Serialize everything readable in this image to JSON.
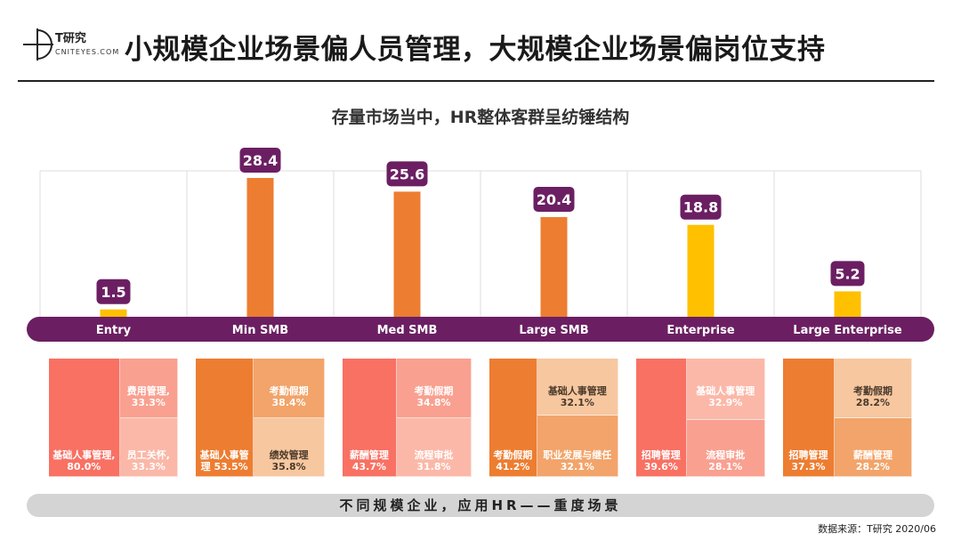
{
  "logo": {
    "name": "T研究",
    "sub": "CNITEYES.COM"
  },
  "page_title": "小规模企业场景偏人员管理，大规模企业场景偏岗位支持",
  "chart_data": {
    "type": "bar",
    "title": "存量市场当中，HR整体客群呈纺锤结构",
    "categories": [
      "Entry",
      "Min SMB",
      "Med SMB",
      "Large SMB",
      "Enterprise",
      "Large Enterprise"
    ],
    "values": [
      1.5,
      28.4,
      25.6,
      20.4,
      18.8,
      5.2
    ],
    "value_labels": [
      "1.5",
      "28.4",
      "25.6",
      "20.4",
      "18.8",
      "5.2"
    ],
    "ylim": [
      0,
      30
    ],
    "grid": "vertical",
    "colors": {
      "bar_orange": "#ED7D31",
      "bar_yellow": "#FFC000",
      "label_bg": "#6B1F62",
      "band": "#6B1F62"
    },
    "bar_colors": [
      "#FFC000",
      "#ED7D31",
      "#ED7D31",
      "#ED7D31",
      "#FFC000",
      "#FFC000"
    ]
  },
  "treemaps": [
    {
      "segment": "Entry",
      "blocks": [
        {
          "label": "基础人事管理, 80.0%",
          "color": "#F87163"
        },
        {
          "label": "费用管理, 33.3%",
          "color": "#F9A090"
        },
        {
          "label": "员工关怀, 33.3%",
          "color": "#FBB8A8"
        }
      ]
    },
    {
      "segment": "Min SMB",
      "blocks": [
        {
          "label": "基础人事管理 53.5%",
          "color": "#ED7D31"
        },
        {
          "label": "考勤假期 38.4%",
          "color": "#F2A46A"
        },
        {
          "label": "绩效管理 35.8%",
          "color": "#F7C7A0"
        }
      ]
    },
    {
      "segment": "Med SMB",
      "blocks": [
        {
          "label": "薪酬管理 43.7%",
          "color": "#F87163"
        },
        {
          "label": "考勤假期 34.8%",
          "color": "#F9A090"
        },
        {
          "label": "流程审批 31.8%",
          "color": "#FBB8A8"
        }
      ]
    },
    {
      "segment": "Large SMB",
      "blocks": [
        {
          "label": "考勤假期 41.2%",
          "color": "#ED7D31"
        },
        {
          "label": "基础人事管理 32.1%",
          "color": "#F7C7A0"
        },
        {
          "label": "职业发展与继任 32.1%",
          "color": "#F2A46A"
        }
      ]
    },
    {
      "segment": "Enterprise",
      "blocks": [
        {
          "label": "招聘管理 39.6%",
          "color": "#F87163"
        },
        {
          "label": "基础人事管理 32.9%",
          "color": "#FBB8A8"
        },
        {
          "label": "流程审批 28.1%",
          "color": "#F9A090"
        }
      ]
    },
    {
      "segment": "Large Enterprise",
      "blocks": [
        {
          "label": "招聘管理 37.3%",
          "color": "#ED7D31"
        },
        {
          "label": "考勤假期 28.2%",
          "color": "#F7C7A0"
        },
        {
          "label": "薪酬管理 28.2%",
          "color": "#F2A46A"
        }
      ]
    }
  ],
  "footer": {
    "caption": "不同规模企业，应用HR——重度场景"
  },
  "source": "数据来源：T研究 2020/06"
}
